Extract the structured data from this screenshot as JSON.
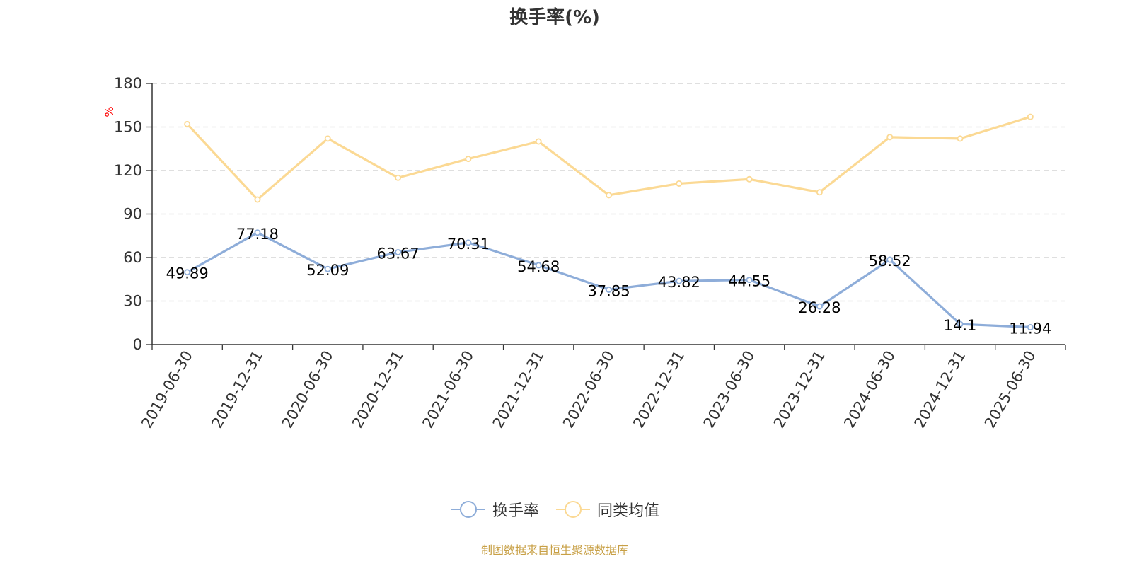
{
  "title": "换手率(%)",
  "source_note": "制图数据来自恒生聚源数据库",
  "colors": {
    "turnover": "#8eadd9",
    "peer_avg": "#fbd994",
    "axis": "#333333",
    "grid": "#cccccc",
    "unit_label": "#ff0000",
    "source_note": "#c8a046"
  },
  "legend": {
    "items": [
      {
        "label": "换手率",
        "color": "#8eadd9"
      },
      {
        "label": "同类均值",
        "color": "#fbd994"
      }
    ]
  },
  "chart_data": {
    "type": "line",
    "title": "换手率(%)",
    "xlabel": "",
    "ylabel": "%",
    "ylim": [
      0,
      180
    ],
    "yticks": [
      0,
      30,
      60,
      90,
      120,
      150,
      180
    ],
    "grid": true,
    "legend_position": "bottom-center",
    "categories": [
      "2019-06-30",
      "2019-12-31",
      "2020-06-30",
      "2020-12-31",
      "2021-06-30",
      "2021-12-31",
      "2022-06-30",
      "2022-12-31",
      "2023-06-30",
      "2023-12-31",
      "2024-06-30",
      "2024-12-31",
      "2025-06-30"
    ],
    "series": [
      {
        "name": "换手率",
        "values": [
          49.89,
          77.18,
          52.09,
          63.67,
          70.31,
          54.68,
          37.85,
          43.82,
          44.55,
          26.28,
          58.52,
          14.1,
          11.94
        ],
        "labels": [
          "49.89",
          "77.18",
          "52.09",
          "63.67",
          "70.31",
          "54.68",
          "37.85",
          "43.82",
          "44.55",
          "26.28",
          "58.52",
          "14.1",
          "11.94"
        ]
      },
      {
        "name": "同类均值",
        "values": [
          152,
          100,
          142,
          115,
          128,
          140,
          103,
          111,
          114,
          105,
          143,
          142,
          157
        ]
      }
    ]
  }
}
